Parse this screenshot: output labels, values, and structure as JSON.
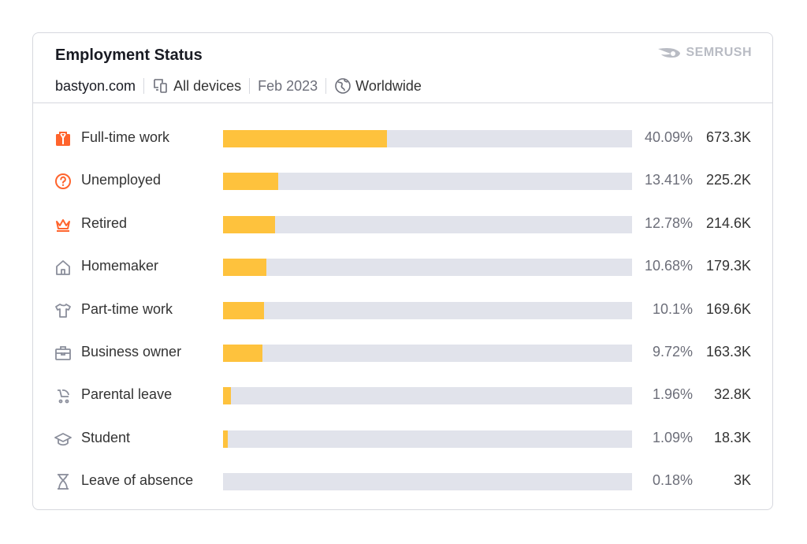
{
  "header": {
    "title": "Employment Status",
    "domain": "bastyon.com",
    "devices": "All devices",
    "date": "Feb 2023",
    "region": "Worldwide",
    "brand": "SEMRUSH"
  },
  "colors": {
    "bar": "#fec23d",
    "track": "#e1e3eb",
    "accent_icon": "#ff642d",
    "grey_icon": "#8a8e9b"
  },
  "chart_data": {
    "type": "bar",
    "orientation": "horizontal",
    "title": "Employment Status",
    "categories": [
      "Full-time work",
      "Unemployed",
      "Retired",
      "Homemaker",
      "Part-time work",
      "Business owner",
      "Parental leave",
      "Student",
      "Leave of absence"
    ],
    "percent_labels": [
      "40.09%",
      "13.41%",
      "12.78%",
      "10.68%",
      "10.1%",
      "9.72%",
      "1.96%",
      "1.09%",
      "0.18%"
    ],
    "percent_values": [
      40.09,
      13.41,
      12.78,
      10.68,
      10.1,
      9.72,
      1.96,
      1.09,
      0.18
    ],
    "count_labels": [
      "673.3K",
      "225.2K",
      "214.6K",
      "179.3K",
      "169.6K",
      "163.3K",
      "32.8K",
      "18.3K",
      "3K"
    ],
    "icons": [
      "briefcase-icon",
      "question-circle-icon",
      "crown-icon",
      "house-icon",
      "tshirt-icon",
      "toolbox-icon",
      "stroller-icon",
      "graduation-cap-icon",
      "hourglass-icon"
    ],
    "xlim": [
      0,
      100
    ]
  }
}
